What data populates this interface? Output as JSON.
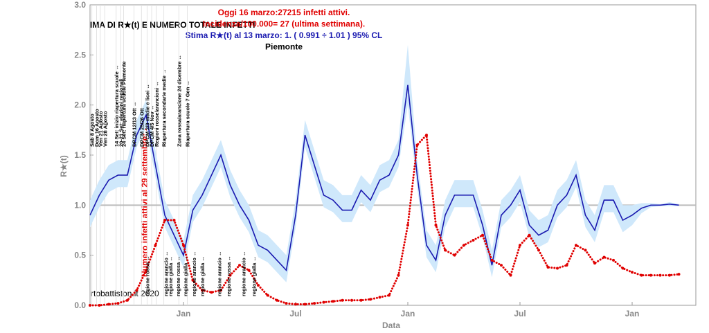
{
  "chart_data": {
    "type": "line",
    "title": "IMA DI R★(t) E NUMERO TOTALE INFETTI",
    "subtitles": [
      {
        "text": "Oggi 16 marzo:27215 infetti attivi.",
        "color": "#e00000"
      },
      {
        "text": "Incidenza/100.000= 27 (ultima settimana).",
        "color": "#e00000"
      },
      {
        "text": "Stima R★(t) al 13 marzo: 1. ( 0.991 ÷ 1.01 ) 95% CL",
        "color": "#1a1ab0"
      },
      {
        "text": "Piemonte",
        "color": "#000000"
      }
    ],
    "xlabel": "Data",
    "ylabel": "R★(t)",
    "credit": "rtobattiston.it 2020",
    "side_note": "Numero infetti attivi al 29 settembre: 2684",
    "categories": [
      null,
      null,
      null,
      null,
      null,
      null,
      null,
      null,
      null,
      null,
      "Jan",
      null,
      null,
      null,
      null,
      null,
      null,
      null,
      null,
      null,
      null,
      null,
      "Jul",
      null,
      null,
      null,
      null,
      null,
      null,
      null,
      null,
      null,
      null,
      null,
      "Jan",
      null,
      null,
      null,
      null,
      null,
      null,
      null,
      null,
      null,
      null,
      null,
      "Jul",
      null,
      null,
      null,
      null,
      null,
      null,
      null,
      null,
      null,
      null,
      null,
      "Jan",
      null,
      null,
      null,
      null,
      null
    ],
    "series": [
      {
        "name": "R★(t)",
        "color": "#1a1ab0",
        "band_color": "#cfe8fb",
        "values": [
          0.9,
          1.1,
          1.25,
          1.3,
          1.3,
          1.7,
          1.9,
          1.4,
          0.9,
          0.7,
          0.5,
          0.95,
          1.1,
          1.3,
          1.5,
          1.2,
          1.0,
          0.85,
          0.6,
          0.55,
          0.45,
          0.35,
          0.9,
          1.7,
          1.4,
          1.1,
          1.05,
          0.95,
          0.95,
          1.15,
          1.05,
          1.25,
          1.3,
          1.5,
          2.2,
          1.3,
          0.6,
          0.45,
          0.9,
          1.1,
          1.1,
          1.1,
          0.8,
          0.4,
          0.9,
          1.0,
          1.15,
          0.8,
          0.7,
          0.75,
          1.0,
          1.1,
          1.3,
          0.9,
          0.75,
          1.05,
          1.05,
          0.85,
          0.9,
          0.97,
          1.0,
          1.0,
          1.01,
          1.0
        ],
        "lower": [
          0.78,
          0.98,
          1.13,
          1.18,
          1.18,
          1.58,
          1.78,
          1.28,
          0.78,
          0.58,
          0.38,
          0.83,
          0.98,
          1.18,
          1.38,
          1.08,
          0.88,
          0.73,
          0.48,
          0.43,
          0.33,
          0.23,
          0.78,
          1.58,
          1.28,
          0.98,
          0.93,
          0.83,
          0.83,
          1.03,
          0.93,
          1.13,
          1.18,
          1.38,
          2.0,
          1.18,
          0.48,
          0.33,
          0.78,
          0.98,
          0.98,
          0.98,
          0.68,
          0.28,
          0.78,
          0.88,
          1.03,
          0.68,
          0.58,
          0.63,
          0.88,
          0.98,
          1.18,
          0.78,
          0.63,
          0.93,
          0.93,
          0.73,
          0.8,
          0.92,
          0.98,
          0.99,
          0.99,
          0.99
        ],
        "upper": [
          1.05,
          1.25,
          1.4,
          1.45,
          1.45,
          1.85,
          2.05,
          1.55,
          1.05,
          0.85,
          0.65,
          1.1,
          1.25,
          1.45,
          1.65,
          1.35,
          1.15,
          1.0,
          0.75,
          0.7,
          0.6,
          0.5,
          1.05,
          1.85,
          1.55,
          1.25,
          1.2,
          1.1,
          1.1,
          1.3,
          1.2,
          1.4,
          1.45,
          1.65,
          2.6,
          1.45,
          0.75,
          0.6,
          1.05,
          1.25,
          1.25,
          1.25,
          0.95,
          0.55,
          1.05,
          1.15,
          1.3,
          0.95,
          0.85,
          0.9,
          1.15,
          1.25,
          1.45,
          1.05,
          0.9,
          1.2,
          1.2,
          1.0,
          1.0,
          1.02,
          1.02,
          1.01,
          1.03,
          1.01
        ]
      },
      {
        "name": "Numero infetti attivi",
        "color": "#e00000",
        "style": "dots",
        "values": [
          0,
          0,
          0.01,
          0.02,
          0.05,
          0.15,
          0.35,
          0.6,
          0.85,
          0.85,
          0.6,
          0.25,
          0.15,
          0.13,
          0.15,
          0.3,
          0.4,
          0.35,
          0.2,
          0.1,
          0.05,
          0.02,
          0.01,
          0.01,
          0.02,
          0.03,
          0.04,
          0.05,
          0.05,
          0.05,
          0.06,
          0.08,
          0.1,
          0.3,
          0.8,
          1.6,
          1.7,
          0.8,
          0.55,
          0.5,
          0.6,
          0.65,
          0.7,
          0.45,
          0.4,
          0.3,
          0.6,
          0.7,
          0.55,
          0.38,
          0.37,
          0.4,
          0.6,
          0.55,
          0.42,
          0.48,
          0.45,
          0.37,
          0.33,
          0.3,
          0.3,
          0.3,
          0.3,
          0.31
        ]
      }
    ],
    "reference_line": 1,
    "ylim": [
      0,
      3
    ],
    "yticks": [
      {
        "value": 0,
        "label": "0.0"
      },
      {
        "value": 0.5,
        "label": "0.5"
      },
      {
        "value": 1,
        "label": "1.0"
      },
      {
        "value": 1.5,
        "label": "1.5"
      },
      {
        "value": 2,
        "label": "2.0"
      },
      {
        "value": 2.5,
        "label": "2.5"
      },
      {
        "value": 3,
        "label": "3.0"
      }
    ],
    "top_annotations": [
      {
        "x": 0.2,
        "text": "Sab 8 Agosto"
      },
      {
        "x": 0.7,
        "text": "Dom 16 Agosto"
      },
      {
        "x": 1.1,
        "text": "Ven 21 Agosto"
      },
      {
        "x": 1.6,
        "text": "Ven 28 Agosto"
      },
      {
        "x": 2.8,
        "text": "14 Set: inizio riapertura scuole ↔"
      },
      {
        "x": 3.3,
        "text": "20-21 Set: elezioni regionali"
      },
      {
        "x": 3.6,
        "text": "24 Set: riapertura scuole Piemonte"
      },
      {
        "x": 4.7,
        "text": "DPCM 12/13 Ott ↔"
      },
      {
        "x": 5.5,
        "text": "DPCM 25/26 Ott"
      },
      {
        "x": 6.1,
        "text": "DPCM 2/3 medie e licei ↔"
      },
      {
        "x": 6.6,
        "text": "DPCM 4/5 Nov ↔"
      },
      {
        "x": 7.1,
        "text": "Regioni rosse/arancioni ↔"
      },
      {
        "x": 7.9,
        "text": "Riapertura secondarie medie →"
      },
      {
        "x": 9.5,
        "text": "Zona rossa/arancione 24 dicembre ↔"
      },
      {
        "x": 10.4,
        "text": "Riapertura scuole 7 Gen ↔"
      }
    ],
    "bottom_annotations": [
      {
        "x": 6.1,
        "text": "regione rossa ↔"
      },
      {
        "x": 8.1,
        "text": "regione arancio ↔"
      },
      {
        "x": 8.6,
        "text": "regione gialla ↔"
      },
      {
        "x": 9.4,
        "text": "regione rossa ↔"
      },
      {
        "x": 10.2,
        "text": "regione gialla ↔"
      },
      {
        "x": 11.1,
        "text": "regione arancio ↔"
      },
      {
        "x": 12,
        "text": "regione gialla ↔"
      },
      {
        "x": 13.8,
        "text": "regione arancio ↔"
      },
      {
        "x": 14.8,
        "text": "regione rossa ↔"
      },
      {
        "x": 16.4,
        "text": "regione arancio ↔"
      },
      {
        "x": 17.5,
        "text": "regione gialla ↔"
      }
    ]
  }
}
